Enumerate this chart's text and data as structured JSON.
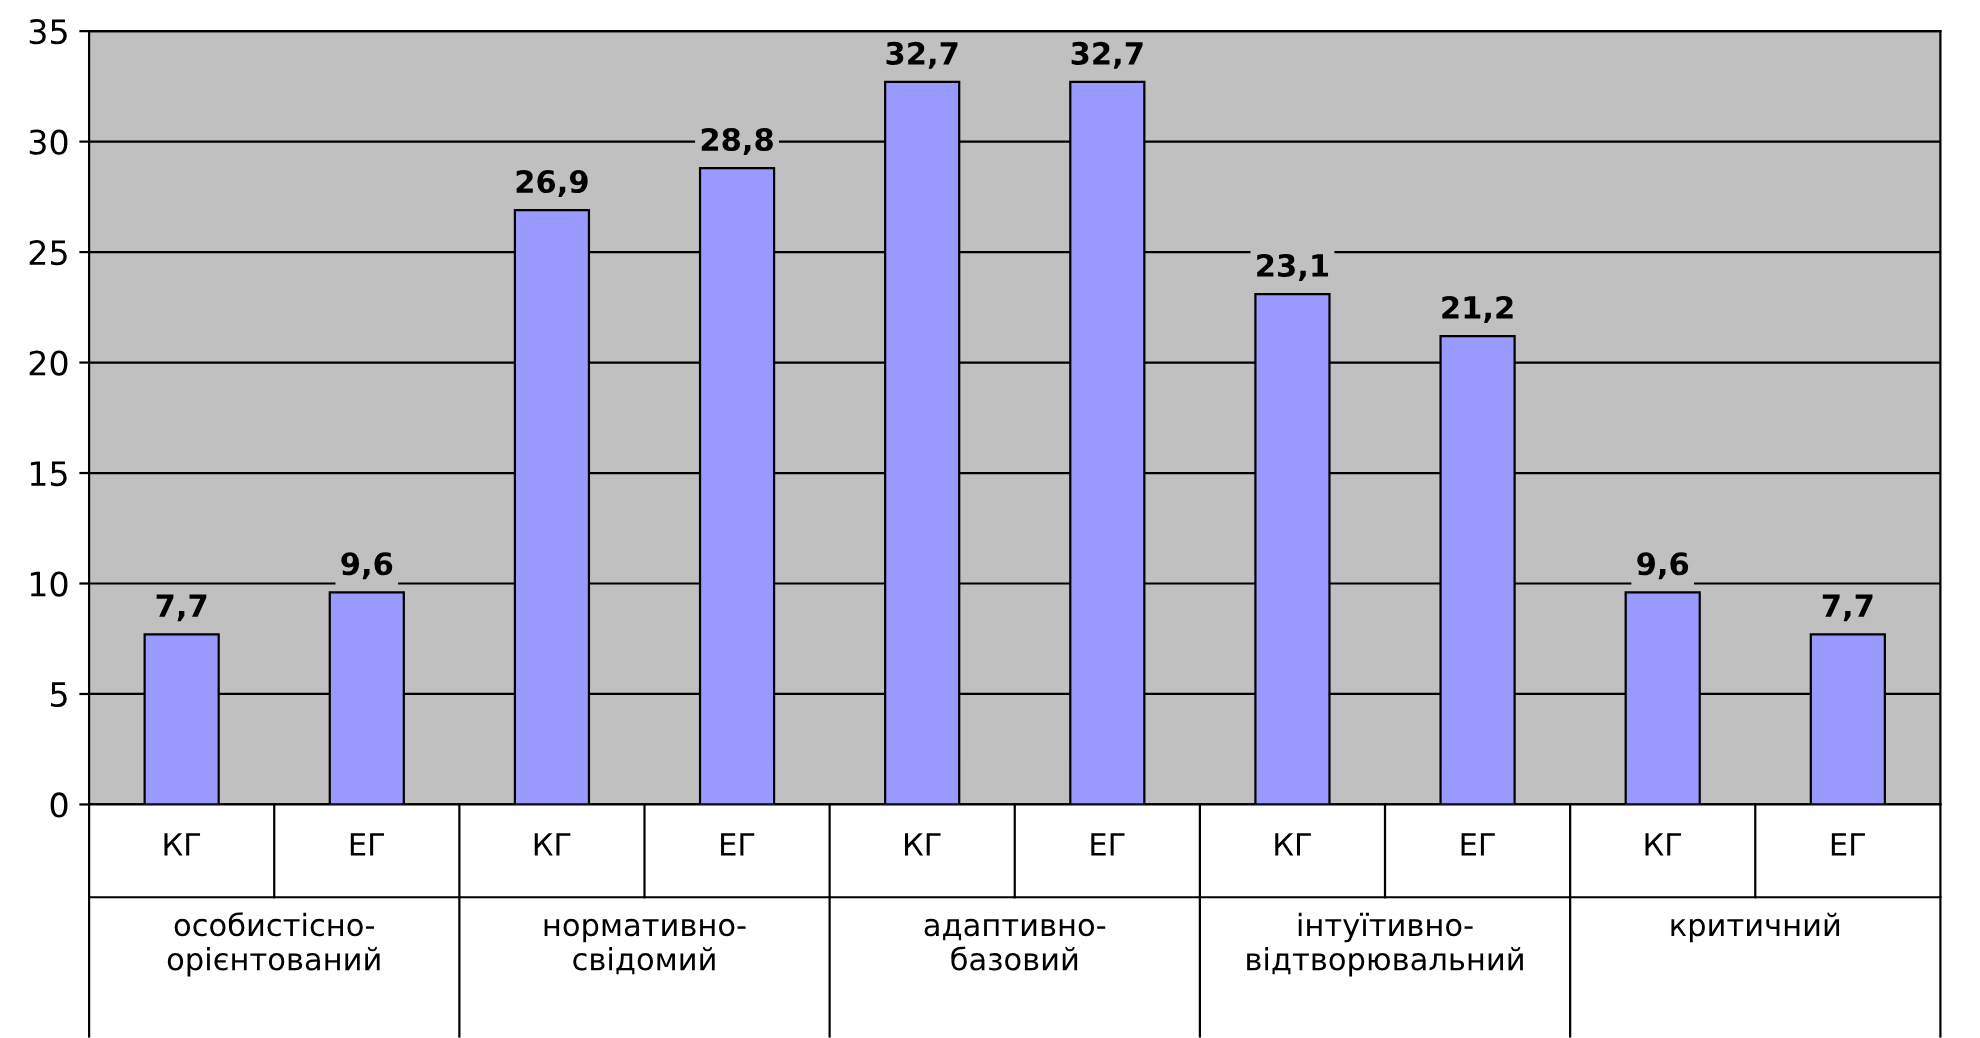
{
  "chart_data": {
    "type": "bar",
    "categories": [
      "КГ",
      "ЕГ",
      "КГ",
      "ЕГ",
      "КГ",
      "ЕГ",
      "КГ",
      "ЕГ",
      "КГ",
      "ЕГ"
    ],
    "values": [
      7.7,
      9.6,
      26.9,
      28.8,
      32.7,
      32.7,
      23.1,
      21.2,
      9.6,
      7.7
    ],
    "value_labels": [
      "7,7",
      "9,6",
      "26,9",
      "28,8",
      "32,7",
      "32,7",
      "23,1",
      "21,2",
      "9,6",
      "7,7"
    ],
    "color": "#9999ff",
    "annotations": [
      "особистісно-\nорієнтований",
      "нормативно-\nсвідомий",
      "адаптивно-\nбазовий",
      "інтуїтивно-\nвідтворювальний",
      "критичний"
    ],
    "ylim": [
      0,
      35
    ],
    "yticks": [
      0,
      5,
      10,
      15,
      20,
      25,
      30,
      35
    ],
    "grid": "y",
    "legend": false
  }
}
